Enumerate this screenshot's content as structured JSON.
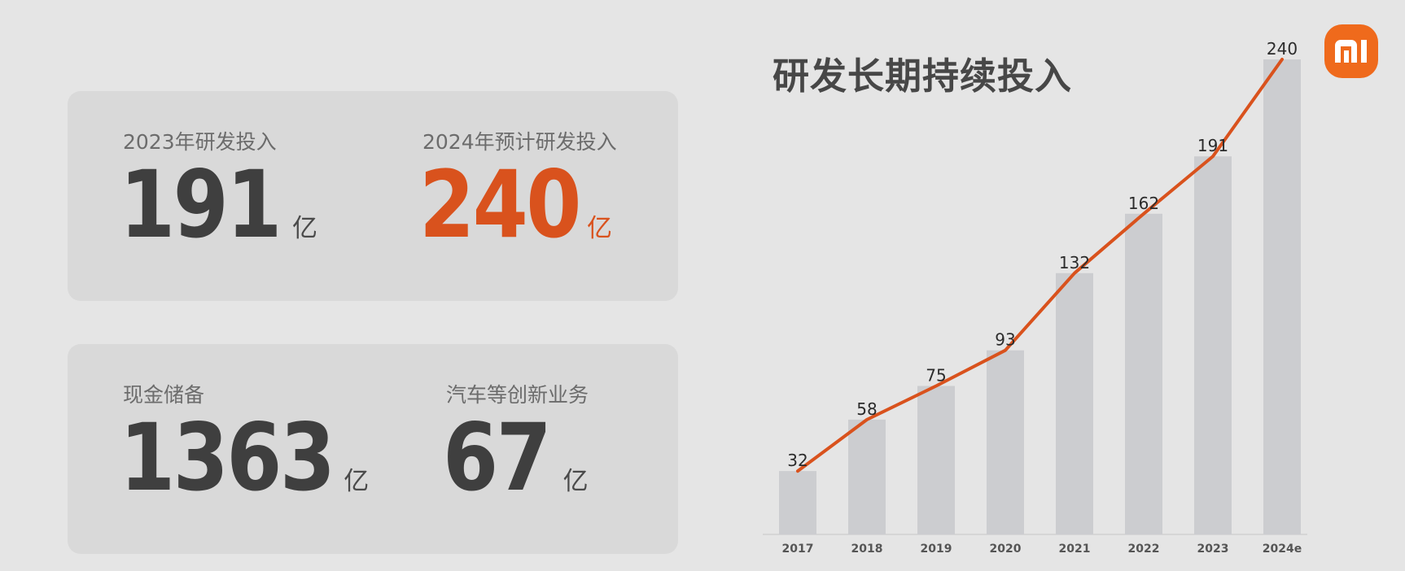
{
  "brand": {
    "accent_color": "#d9521d",
    "logo_color": "#ef6a1c",
    "logo_icon": "mi-logo-icon"
  },
  "metrics": [
    {
      "label": "2023年研发投入",
      "value": "191",
      "unit": "亿",
      "highlight": false
    },
    {
      "label": "2024年预计研发投入",
      "value": "240",
      "unit": "亿",
      "highlight": true
    },
    {
      "label": "现金储备",
      "value": "1363",
      "unit": "亿",
      "highlight": false
    },
    {
      "label": "汽车等创新业务",
      "value": "67",
      "unit": "亿",
      "highlight": false
    }
  ],
  "chart_data": {
    "type": "bar",
    "title": "研发长期持续投入",
    "categories": [
      "2017",
      "2018",
      "2019",
      "2020",
      "2021",
      "2022",
      "2023",
      "2024e"
    ],
    "values": [
      32,
      58,
      75,
      93,
      132,
      162,
      191,
      240
    ],
    "overlay": "line",
    "data_labels": true,
    "ylim": [
      0,
      240
    ],
    "xlabel": "",
    "ylabel": "",
    "grid": false,
    "bar_color": "#cccdd0",
    "line_color": "#d9521d"
  }
}
